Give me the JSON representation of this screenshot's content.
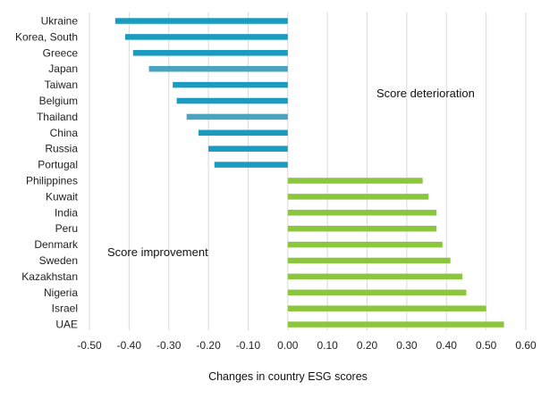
{
  "chart_data": {
    "type": "bar",
    "orientation": "horizontal",
    "title": "",
    "xlabel": "Changes in country ESG scores",
    "ylabel": "",
    "xlim": [
      -0.5,
      0.6
    ],
    "xticks": [
      -0.5,
      -0.4,
      -0.3,
      -0.2,
      -0.1,
      0.0,
      0.1,
      0.2,
      0.3,
      0.4,
      0.5,
      0.6
    ],
    "xtick_labels": [
      "-0.50",
      "-0.40",
      "-0.30",
      "-0.20",
      "-0.10",
      "0.00",
      "0.10",
      "0.20",
      "0.30",
      "0.40",
      "0.50",
      "0.60"
    ],
    "grid": "vertical",
    "categories": [
      "Ukraine",
      "Korea, South",
      "Greece",
      "Japan",
      "Taiwan",
      "Belgium",
      "Thailand",
      "China",
      "Russia",
      "Portugal",
      "Philippines",
      "Kuwait",
      "India",
      "Peru",
      "Denmark",
      "Sweden",
      "Kazakhstan",
      "Nigeria",
      "Israel",
      "UAE"
    ],
    "values": [
      -0.435,
      -0.41,
      -0.39,
      -0.35,
      -0.29,
      -0.28,
      -0.255,
      -0.225,
      -0.2,
      -0.185,
      0.34,
      0.355,
      0.375,
      0.375,
      0.39,
      0.41,
      0.44,
      0.45,
      0.5,
      0.545
    ],
    "bar_colors": [
      "#1a9bbf",
      "#1a9bbf",
      "#1a9bbf",
      "#4aa3bf",
      "#1a9bbf",
      "#1a9bbf",
      "#4aa3bf",
      "#1a9bbf",
      "#1a9bbf",
      "#1a9bbf",
      "#8cc63f",
      "#8cc63f",
      "#8cc63f",
      "#8cc63f",
      "#8cc63f",
      "#8cc63f",
      "#8cc63f",
      "#8cc63f",
      "#8cc63f",
      "#8cc63f"
    ],
    "annotations": [
      "Score deterioration",
      "Score improvement"
    ]
  },
  "colors": {
    "deterioration": "#1a9bbf",
    "deterioration_light": "#4aa3bf",
    "improvement": "#8cc63f",
    "grid": "#d9d9d9"
  }
}
